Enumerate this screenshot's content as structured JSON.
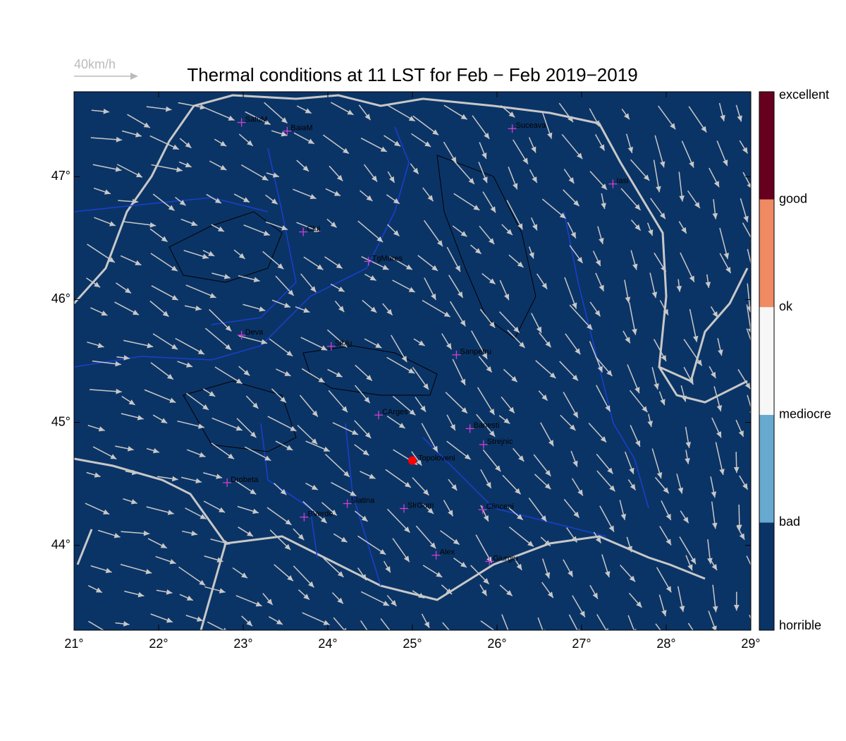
{
  "chart_data": {
    "type": "map",
    "title": "Thermal conditions at 11 LST for Feb − Feb  2019−2019",
    "wind_scale_label": "40km/h",
    "xlim": [
      21,
      29
    ],
    "ylim": [
      43.31,
      47.69
    ],
    "xticks": [
      {
        "value": 21,
        "label": "21°"
      },
      {
        "value": 22,
        "label": "22°"
      },
      {
        "value": 23,
        "label": "23°"
      },
      {
        "value": 24,
        "label": "24°"
      },
      {
        "value": 25,
        "label": "25°"
      },
      {
        "value": 26,
        "label": "26°"
      },
      {
        "value": 27,
        "label": "27°"
      },
      {
        "value": 28,
        "label": "28°"
      },
      {
        "value": 29,
        "label": "29°"
      }
    ],
    "yticks": [
      {
        "value": 44,
        "label": "44°"
      },
      {
        "value": 45,
        "label": "45°"
      },
      {
        "value": 46,
        "label": "46°"
      },
      {
        "value": 47,
        "label": "47°"
      }
    ],
    "background_color": "#0b3466",
    "colorbar": {
      "labels": [
        "horrible",
        "bad",
        "mediocre",
        "ok",
        "good",
        "excellent"
      ],
      "colors": [
        "#0b3466",
        "#67a9cf",
        "#f7f7f7",
        "#ef8a62",
        "#67001f"
      ]
    },
    "stations": [
      {
        "name": "SatuM",
        "lon": 22.98,
        "lat": 47.44
      },
      {
        "name": "BaiaM",
        "lon": 23.52,
        "lat": 47.37
      },
      {
        "name": "Suceava",
        "lon": 26.18,
        "lat": 47.39
      },
      {
        "name": "Iasi",
        "lon": 27.37,
        "lat": 46.94
      },
      {
        "name": "Cluj",
        "lon": 23.71,
        "lat": 46.55
      },
      {
        "name": "TgMures",
        "lon": 24.48,
        "lat": 46.31
      },
      {
        "name": "Deva",
        "lon": 22.98,
        "lat": 45.71
      },
      {
        "name": "Sibiu",
        "lon": 24.04,
        "lat": 45.62
      },
      {
        "name": "Sanpetru",
        "lon": 25.52,
        "lat": 45.55
      },
      {
        "name": "CArges",
        "lon": 24.6,
        "lat": 45.06
      },
      {
        "name": "Banesti",
        "lon": 25.68,
        "lat": 44.95
      },
      {
        "name": "Strejnic",
        "lon": 25.84,
        "lat": 44.82
      },
      {
        "name": "Drobeta",
        "lon": 22.81,
        "lat": 44.51
      },
      {
        "name": "Slatina",
        "lon": 24.23,
        "lat": 44.34
      },
      {
        "name": "SlrGum",
        "lon": 24.9,
        "lat": 44.3
      },
      {
        "name": "Clinceni",
        "lon": 25.83,
        "lat": 44.29
      },
      {
        "name": "BVerde",
        "lon": 23.72,
        "lat": 44.23
      },
      {
        "name": "Alex",
        "lon": 25.28,
        "lat": 43.92
      },
      {
        "name": "Giurgiu",
        "lon": 25.91,
        "lat": 43.87
      }
    ],
    "highlight": {
      "name": "Topoloveni",
      "lon": 25.0,
      "lat": 44.69,
      "color": "#ff0000"
    }
  }
}
